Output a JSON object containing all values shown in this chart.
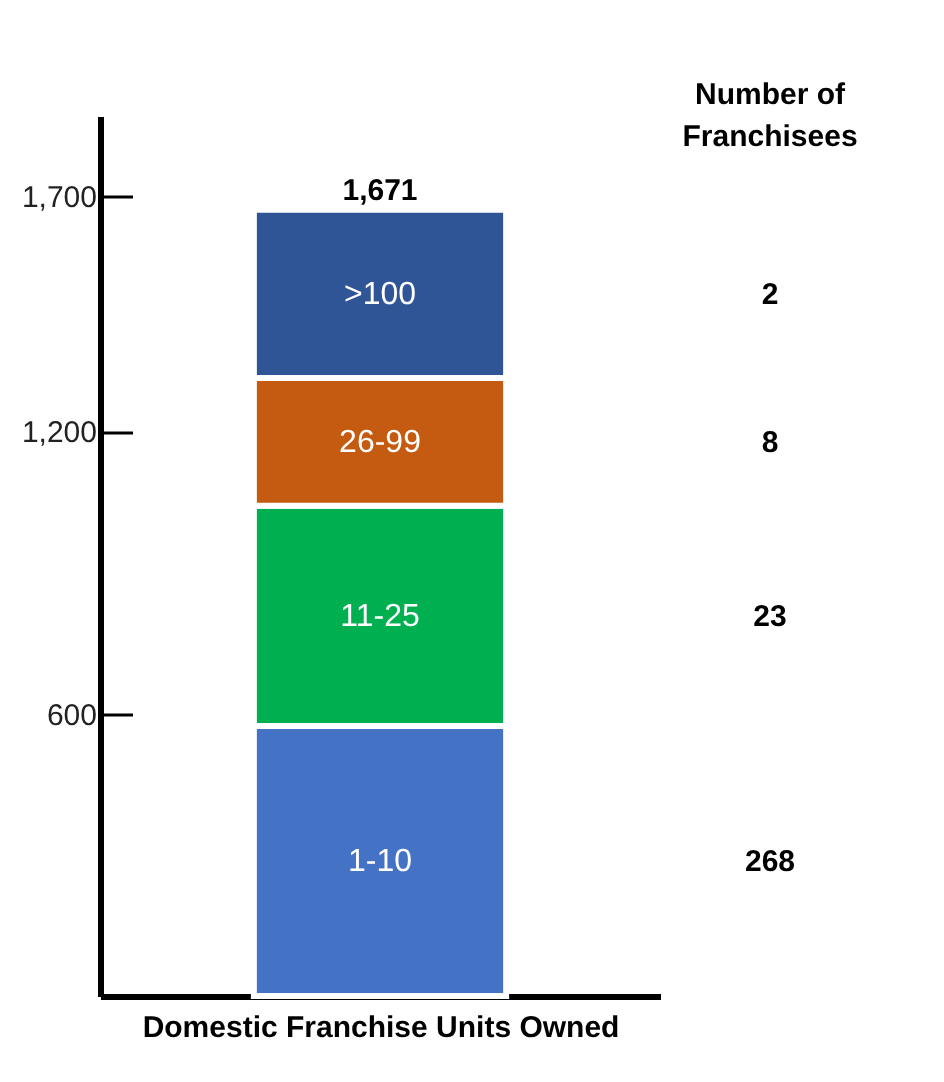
{
  "chart_data": {
    "type": "bar",
    "stacked": true,
    "xlabel": "Domestic Franchise Units Owned",
    "categories": [
      null
    ],
    "series": [
      {
        "name": "1-10",
        "color": "#4472c4",
        "values": [
          574
        ]
      },
      {
        "name": "11-25",
        "color": "#00b050",
        "values": [
          468
        ]
      },
      {
        "name": "26-99",
        "color": "#c55a11",
        "values": [
          271
        ]
      },
      {
        "name": ">100",
        "color": "#2f5597",
        "values": [
          358
        ]
      }
    ],
    "totals": [
      "1,671"
    ],
    "ylim": [
      0,
      1870
    ],
    "yticks": [
      {
        "value": 600,
        "label": "600"
      },
      {
        "value": 1200,
        "label": "1,200"
      },
      {
        "value": 1700,
        "label": "1,700"
      }
    ],
    "annotations": [
      "Number of Franchisees",
      "268",
      "23",
      "8",
      "2"
    ]
  }
}
